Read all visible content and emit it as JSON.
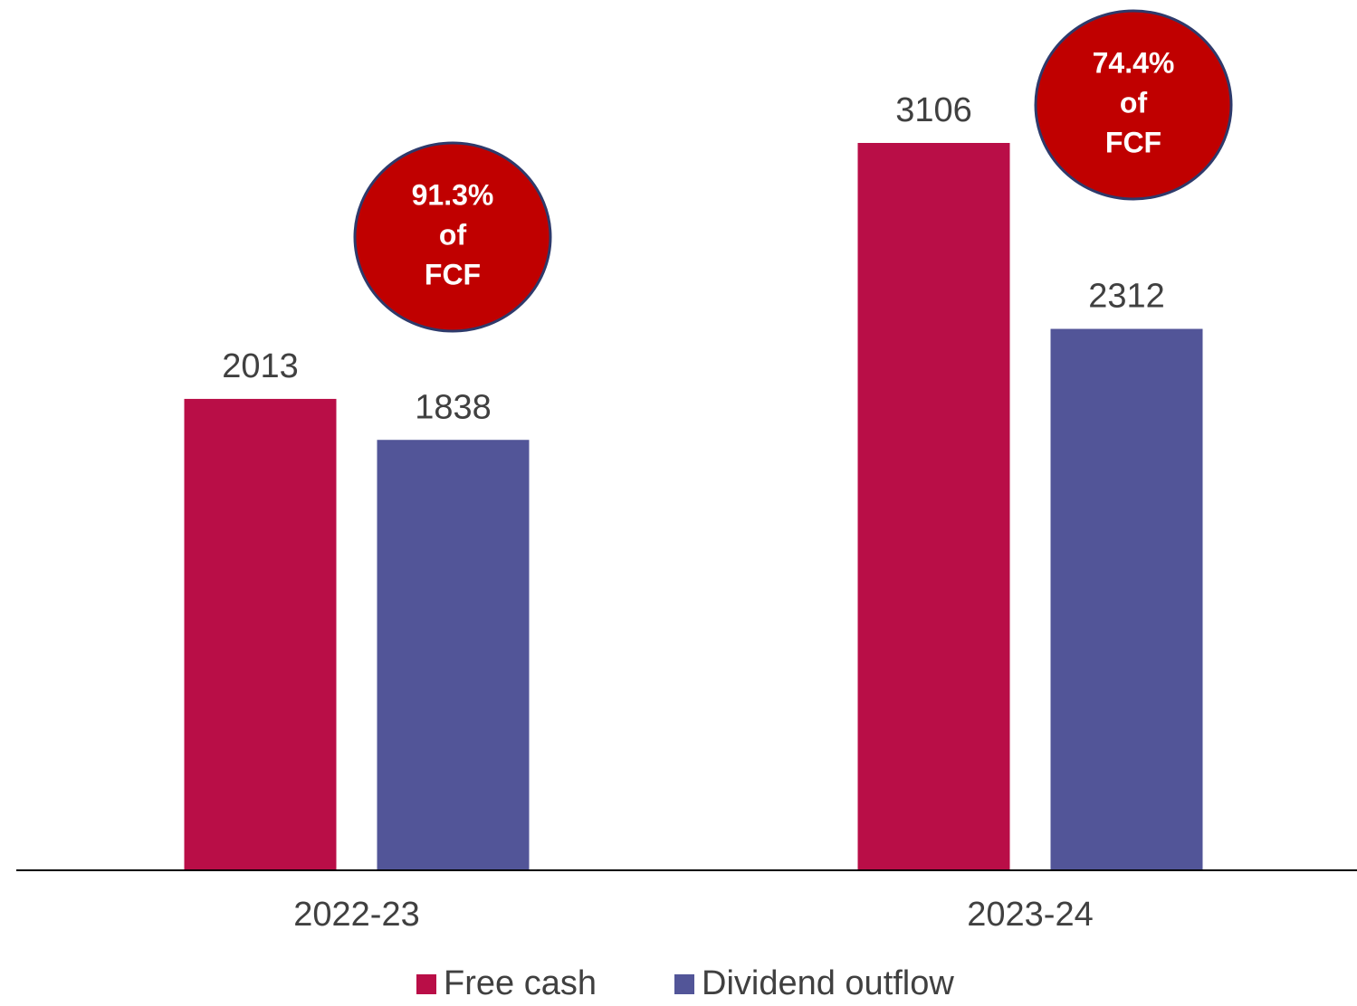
{
  "chart_data": {
    "type": "bar",
    "categories": [
      "2022-23",
      "2023-24"
    ],
    "series": [
      {
        "name": "Free cash",
        "color": "#b90e47",
        "values": [
          2013,
          3106
        ]
      },
      {
        "name": "Dividend outflow",
        "color": "#525598",
        "values": [
          1838,
          2312
        ]
      }
    ],
    "annotations": [
      {
        "lines": [
          "91.3%",
          "of",
          "FCF"
        ]
      },
      {
        "lines": [
          "74.4%",
          "of",
          "FCF"
        ]
      }
    ],
    "legend": "bottom"
  }
}
